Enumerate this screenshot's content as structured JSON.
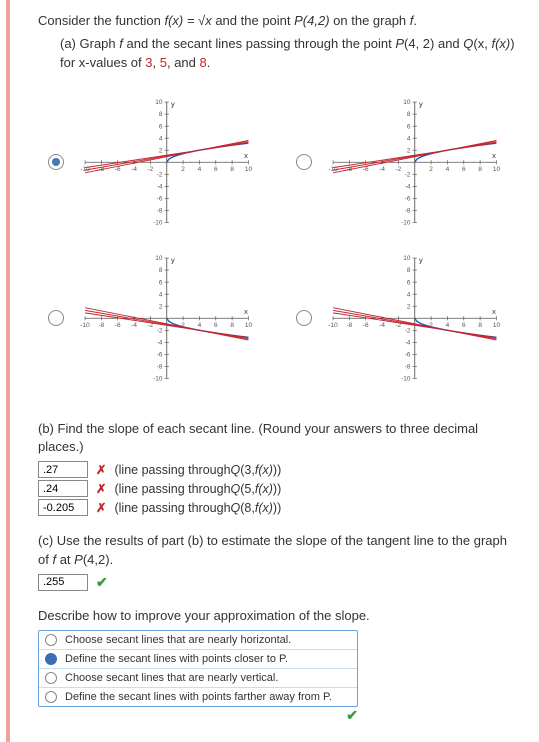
{
  "intro": {
    "line1_a": "Consider the function ",
    "fx": "f(x) = √x",
    "line1_b": " and the point ",
    "pt": "P(4,2)",
    "line1_c": " on the graph ",
    "f": "f",
    "dot": "."
  },
  "partA": {
    "lead": "(a) Graph ",
    "f": "f",
    "mid": " and the secant lines passing through the point ",
    "p": "P",
    "pv": "(4, 2) and ",
    "q": "Q",
    "qv": "(x, ",
    "fx": "f(x)",
    "tail": ") for x-values of ",
    "v1": "3",
    "c1": ", ",
    "v2": "5",
    "c2": ", and ",
    "v3": "8",
    "dot": "."
  },
  "charts": {
    "xmin": -10,
    "xmax": 10,
    "ymin": -10,
    "ymax": 10,
    "xticks": [
      -10,
      -8,
      -6,
      -4,
      -2,
      0,
      2,
      4,
      6,
      8,
      10
    ],
    "yticks": [
      -10,
      -8,
      -6,
      -4,
      -2,
      2,
      4,
      6,
      8,
      10
    ],
    "tick_font": 6,
    "axis_color": "#555",
    "line_color": "#c2262d",
    "curve_color": "#1060c0",
    "xlabel": "x",
    "ylabel": "y",
    "selected_index": 0,
    "variants": [
      {
        "curve": "sqrt_pos",
        "secant_fan": "upper"
      },
      {
        "curve": "sqrt_pos",
        "secant_fan": "upper_offset"
      },
      {
        "curve": "neg_sqrt",
        "secant_fan": "lower"
      },
      {
        "curve": "neg_sqrt",
        "secant_fan": "lower_fan"
      }
    ]
  },
  "partB": {
    "text_a": "(b) Find the slope of each secant line. (Round your answers to three decimal places.)",
    "rows": [
      {
        "val": ".27",
        "tail_a": "(line passing through ",
        "q": "Q",
        "args": "(3, ",
        "fx": "f(x)",
        "close": "))"
      },
      {
        "val": ".24",
        "tail_a": "(line passing through ",
        "q": "Q",
        "args": "(5, ",
        "fx": "f(x)",
        "close": "))"
      },
      {
        "val": "-0.205",
        "tail_a": "(line passing through ",
        "q": "Q",
        "args": "(8, ",
        "fx": "f(x)",
        "close": "))"
      }
    ]
  },
  "partC": {
    "text": "(c) Use the results of part (b) to estimate the slope of the tangent line to the graph of ",
    "f": "f",
    "at": " at ",
    "p": "P",
    "pv": "(4,2).",
    "val": ".255"
  },
  "describe": {
    "prompt": "Describe how to improve your approximation of the slope.",
    "options": [
      "Choose secant lines that are nearly horizontal.",
      "Define the secant lines with points closer to P.",
      "Choose secant lines that are nearly vertical.",
      "Define the secant lines with points farther away from P."
    ],
    "selected": 1
  },
  "marks": {
    "x": "✗",
    "ok": "✔"
  }
}
